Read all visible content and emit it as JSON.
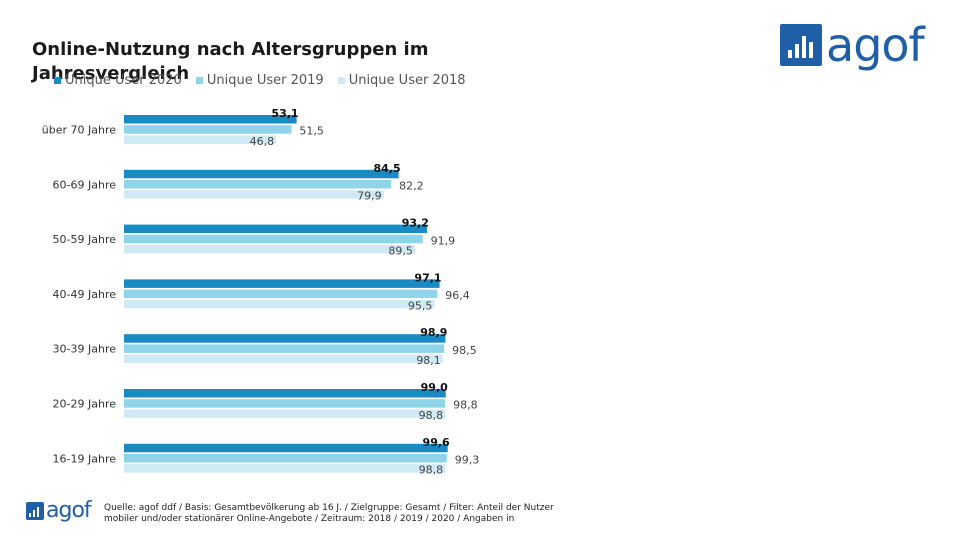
{
  "header": {
    "title": "Online-Nutzung nach Altersgruppen im Jahresvergleich",
    "logo_text": "agof"
  },
  "legend": [
    {
      "label": "Unique User 2020",
      "color": "#1a8ac5"
    },
    {
      "label": "Unique User 2019",
      "color": "#8ed4ea"
    },
    {
      "label": "Unique User 2018",
      "color": "#cfeaf5"
    }
  ],
  "footer": {
    "logo_text": "agof",
    "source": "Quelle: agof ddf / Basis: Gesamtbevölkerung ab 16 J. / Zielgruppe: Gesamt / Filter: Anteil der Nutzer mobiler und/oder stationärer Online-Angebote / Zeitraum: 2018 / 2019 / 2020 / Angaben in"
  },
  "chart_data": {
    "type": "bar",
    "orientation": "horizontal",
    "categories": [
      "über 70 Jahre",
      "60-69 Jahre",
      "50-59 Jahre",
      "40-49 Jahre",
      "30-39 Jahre",
      "20-29 Jahre",
      "16-19 Jahre"
    ],
    "series": [
      {
        "name": "Unique User 2020",
        "color": "#1a8ac5",
        "values": [
          53.1,
          84.5,
          93.2,
          97.1,
          98.9,
          99.0,
          99.6
        ],
        "labels": [
          "53,1",
          "84,5",
          "93,2",
          "97,1",
          "98,9",
          "99,0",
          "99,6"
        ]
      },
      {
        "name": "Unique User 2019",
        "color": "#8ed4ea",
        "values": [
          51.5,
          82.2,
          91.9,
          96.4,
          98.5,
          98.8,
          99.3
        ],
        "labels": [
          "51,5",
          "82,2",
          "91,9",
          "96,4",
          "98,5",
          "98,8",
          "99,3"
        ]
      },
      {
        "name": "Unique User 2018",
        "color": "#cfeaf5",
        "values": [
          46.8,
          79.9,
          89.5,
          95.5,
          98.1,
          98.8,
          98.8
        ],
        "labels": [
          "46,8",
          "79,9",
          "89,5",
          "95,5",
          "98,1",
          "98,8",
          "98,8"
        ]
      }
    ],
    "xlim": [
      0,
      100
    ],
    "grid": false,
    "legend_position": "top-left"
  }
}
